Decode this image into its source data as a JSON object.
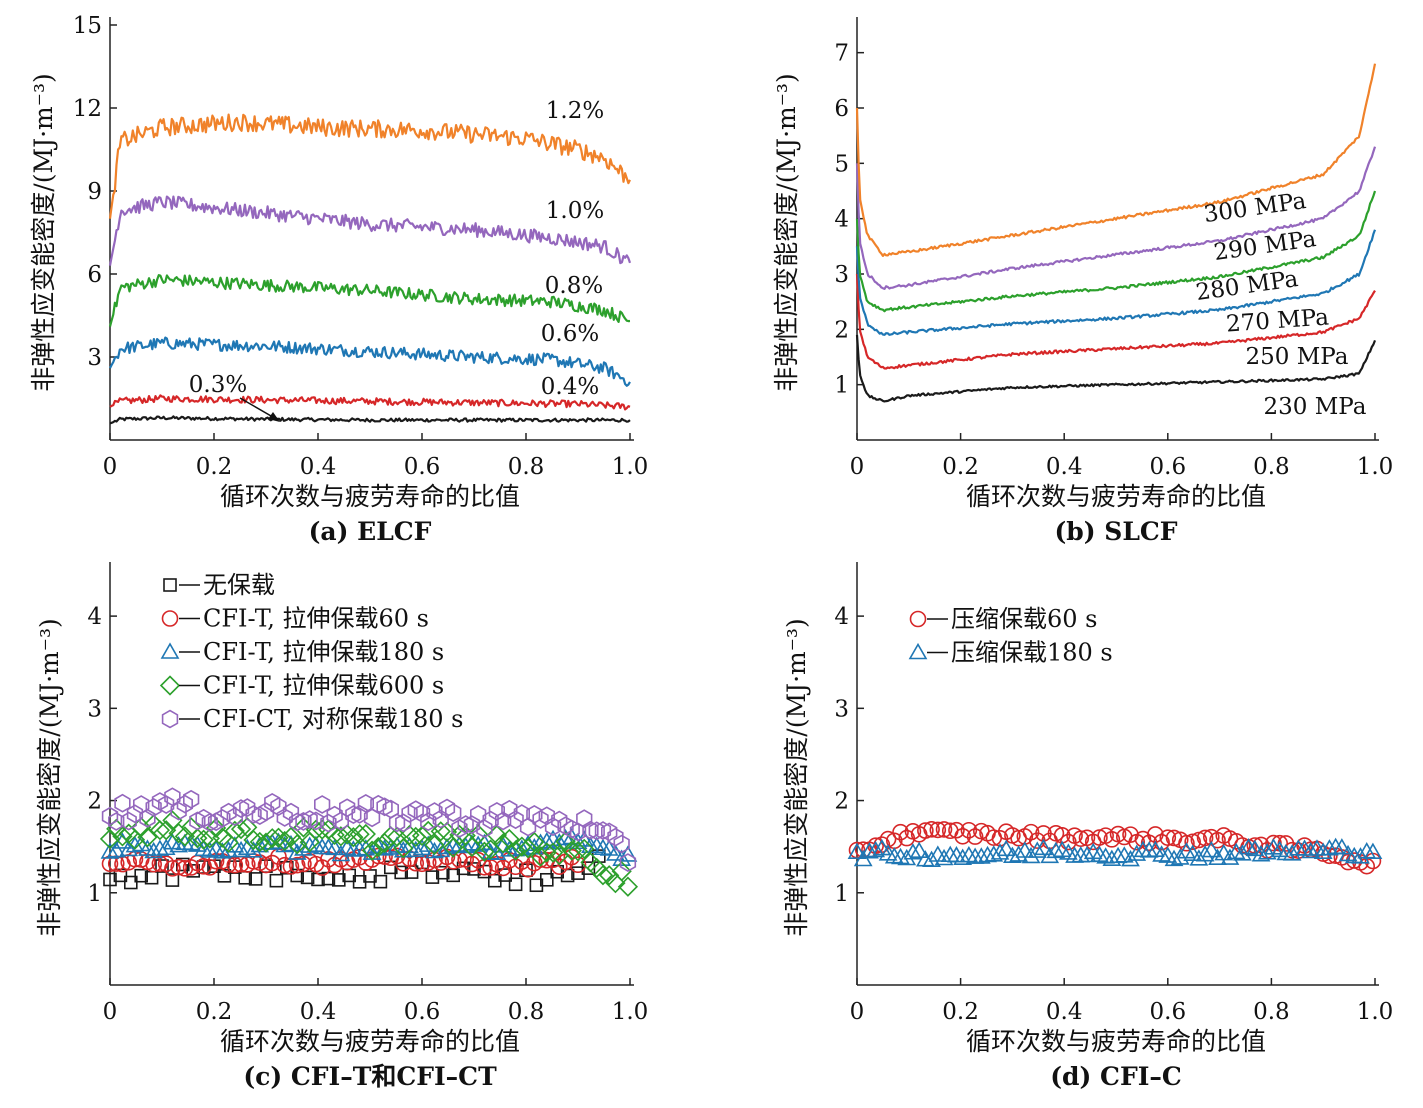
{
  "colors": {
    "black": "#1a1a1a",
    "red": "#d62728",
    "blue": "#1f77b4",
    "green": "#2ca02c",
    "purple": "#9467bd",
    "orange": "#f0822a"
  },
  "chart_data": [
    {
      "type": "line",
      "caption": "(a) ELCF",
      "xlabel": "循环次数与疲劳寿命的比值",
      "ylabel": "非弹性应变能密度/(MJ·m⁻³)",
      "xlim": [
        0,
        1.0
      ],
      "ylim": [
        0,
        15
      ],
      "xticks": [
        "0",
        "0.2",
        "0.4",
        "0.6",
        "0.8",
        "1.0"
      ],
      "yticks": [
        "3",
        "6",
        "9",
        "12",
        "15"
      ],
      "series": [
        {
          "name": "0.3%",
          "color": "black",
          "x": [
            0,
            0.02,
            0.1,
            0.3,
            0.5,
            0.7,
            0.9,
            1.0
          ],
          "y": [
            0.6,
            0.75,
            0.8,
            0.75,
            0.72,
            0.72,
            0.72,
            0.72
          ]
        },
        {
          "name": "0.4%",
          "color": "red",
          "x": [
            0,
            0.02,
            0.1,
            0.3,
            0.5,
            0.7,
            0.9,
            1.0
          ],
          "y": [
            1.2,
            1.4,
            1.5,
            1.45,
            1.4,
            1.35,
            1.3,
            1.2
          ]
        },
        {
          "name": "0.6%",
          "color": "blue",
          "x": [
            0,
            0.02,
            0.1,
            0.3,
            0.5,
            0.7,
            0.85,
            0.95,
            1.0
          ],
          "y": [
            2.6,
            3.3,
            3.5,
            3.4,
            3.2,
            3.0,
            2.9,
            2.6,
            2.1
          ]
        },
        {
          "name": "0.8%",
          "color": "green",
          "x": [
            0,
            0.02,
            0.1,
            0.3,
            0.5,
            0.7,
            0.85,
            0.95,
            1.0
          ],
          "y": [
            4.1,
            5.5,
            5.8,
            5.6,
            5.4,
            5.1,
            5.0,
            4.7,
            4.3
          ]
        },
        {
          "name": "1.0%",
          "color": "purple",
          "x": [
            0,
            0.02,
            0.1,
            0.3,
            0.5,
            0.7,
            0.85,
            0.95,
            1.0
          ],
          "y": [
            6.3,
            8.3,
            8.6,
            8.2,
            7.8,
            7.6,
            7.3,
            7.0,
            6.4
          ]
        },
        {
          "name": "1.2%",
          "color": "orange",
          "x": [
            0,
            0.02,
            0.1,
            0.25,
            0.4,
            0.6,
            0.8,
            0.9,
            0.95,
            1.0
          ],
          "y": [
            8.0,
            10.8,
            11.3,
            11.5,
            11.3,
            11.2,
            10.9,
            10.5,
            10.2,
            9.4
          ]
        }
      ]
    },
    {
      "type": "line",
      "caption": "(b) SLCF",
      "xlabel": "循环次数与疲劳寿命的比值",
      "ylabel": "非弹性应变能密度/(MJ·m⁻³)",
      "xlim": [
        0,
        1.0
      ],
      "ylim": [
        0,
        7.5
      ],
      "xticks": [
        "0",
        "0.2",
        "0.4",
        "0.6",
        "0.8",
        "1.0"
      ],
      "yticks": [
        "1",
        "2",
        "3",
        "4",
        "5",
        "6",
        "7"
      ],
      "series": [
        {
          "name": "230 MPa",
          "color": "black",
          "x": [
            0,
            0.005,
            0.02,
            0.05,
            0.1,
            0.3,
            0.5,
            0.7,
            0.9,
            0.97,
            1.0
          ],
          "y": [
            1.9,
            1.2,
            0.8,
            0.7,
            0.8,
            0.95,
            1.0,
            1.05,
            1.1,
            1.2,
            1.8
          ]
        },
        {
          "name": "250 MPa",
          "color": "red",
          "x": [
            0,
            0.005,
            0.02,
            0.05,
            0.1,
            0.3,
            0.5,
            0.7,
            0.9,
            0.97,
            1.0
          ],
          "y": [
            3.0,
            2.0,
            1.5,
            1.3,
            1.35,
            1.55,
            1.65,
            1.75,
            1.95,
            2.2,
            2.7
          ]
        },
        {
          "name": "270 MPa",
          "color": "blue",
          "x": [
            0,
            0.005,
            0.02,
            0.05,
            0.1,
            0.3,
            0.5,
            0.7,
            0.9,
            0.97,
            1.0
          ],
          "y": [
            3.5,
            2.6,
            2.1,
            1.9,
            1.95,
            2.1,
            2.2,
            2.35,
            2.65,
            3.0,
            3.8
          ]
        },
        {
          "name": "280 MPa",
          "color": "green",
          "x": [
            0,
            0.005,
            0.02,
            0.05,
            0.1,
            0.3,
            0.5,
            0.7,
            0.9,
            0.97,
            1.0
          ],
          "y": [
            4.0,
            3.0,
            2.5,
            2.35,
            2.4,
            2.6,
            2.75,
            2.95,
            3.3,
            3.7,
            4.5
          ]
        },
        {
          "name": "290 MPa",
          "color": "purple",
          "x": [
            0,
            0.005,
            0.02,
            0.05,
            0.1,
            0.3,
            0.5,
            0.7,
            0.9,
            0.97,
            1.0
          ],
          "y": [
            5.0,
            3.6,
            3.0,
            2.75,
            2.8,
            3.1,
            3.35,
            3.6,
            4.0,
            4.5,
            5.3
          ]
        },
        {
          "name": "300 MPa",
          "color": "orange",
          "x": [
            0,
            0.005,
            0.02,
            0.05,
            0.1,
            0.3,
            0.5,
            0.7,
            0.9,
            0.97,
            1.0
          ],
          "y": [
            6.0,
            4.4,
            3.7,
            3.35,
            3.4,
            3.7,
            4.0,
            4.3,
            4.8,
            5.5,
            6.8
          ]
        }
      ]
    },
    {
      "type": "scatter",
      "caption": "(c) CFI–T和CFI–CT",
      "xlabel": "循环次数与疲劳寿命的比值",
      "ylabel": "非弹性应变能密度/(MJ·m⁻³)",
      "xlim": [
        0,
        1.0
      ],
      "ylim": [
        0,
        4.5
      ],
      "xticks": [
        "0",
        "0.2",
        "0.4",
        "0.6",
        "0.8",
        "1.0"
      ],
      "yticks": [
        "1",
        "2",
        "3",
        "4"
      ],
      "legend_position": "top-left",
      "series": [
        {
          "name": "无保载",
          "marker": "square",
          "color": "black",
          "x": [
            0,
            0.1,
            0.2,
            0.3,
            0.4,
            0.5,
            0.6,
            0.7,
            0.8,
            0.9,
            0.95
          ],
          "y": [
            1.2,
            1.22,
            1.25,
            1.2,
            1.22,
            1.2,
            1.25,
            1.25,
            1.15,
            1.18,
            1.35
          ]
        },
        {
          "name": "CFI-T, 拉伸保载60 s",
          "marker": "circle",
          "color": "red",
          "x": [
            0,
            0.1,
            0.2,
            0.3,
            0.4,
            0.5,
            0.6,
            0.7,
            0.8,
            0.9
          ],
          "y": [
            1.35,
            1.3,
            1.32,
            1.35,
            1.32,
            1.35,
            1.35,
            1.33,
            1.3,
            1.35
          ]
        },
        {
          "name": "CFI-T, 拉伸保载180 s",
          "marker": "triangle",
          "color": "blue",
          "x": [
            0,
            0.1,
            0.2,
            0.3,
            0.4,
            0.5,
            0.6,
            0.7,
            0.8,
            0.9,
            1.0
          ],
          "y": [
            1.5,
            1.48,
            1.5,
            1.5,
            1.48,
            1.45,
            1.5,
            1.48,
            1.5,
            1.55,
            1.4
          ]
        },
        {
          "name": "CFI-T, 拉伸保载600 s",
          "marker": "diamond",
          "color": "green",
          "x": [
            0,
            0.1,
            0.2,
            0.3,
            0.4,
            0.5,
            0.6,
            0.7,
            0.8,
            0.9,
            1.0
          ],
          "y": [
            1.65,
            1.7,
            1.65,
            1.6,
            1.62,
            1.55,
            1.6,
            1.55,
            1.5,
            1.45,
            1.1
          ]
        },
        {
          "name": "CFI-CT, 对称保载180 s",
          "marker": "hexagon",
          "color": "purple",
          "x": [
            0,
            0.1,
            0.2,
            0.3,
            0.4,
            0.5,
            0.6,
            0.7,
            0.8,
            0.9,
            1.0
          ],
          "y": [
            1.85,
            1.95,
            1.85,
            1.9,
            1.85,
            1.85,
            1.85,
            1.8,
            1.8,
            1.75,
            1.4
          ]
        }
      ]
    },
    {
      "type": "scatter",
      "caption": "(d) CFI–C",
      "xlabel": "循环次数与疲劳寿命的比值",
      "ylabel": "非弹性应变能密度/(MJ·m⁻³)",
      "xlim": [
        0,
        1.0
      ],
      "ylim": [
        0,
        4.5
      ],
      "xticks": [
        "0",
        "0.2",
        "0.4",
        "0.6",
        "0.8",
        "1.0"
      ],
      "yticks": [
        "1",
        "2",
        "3",
        "4"
      ],
      "legend_position": "top-left",
      "series": [
        {
          "name": "压缩保载60 s",
          "marker": "circle",
          "color": "red",
          "x": [
            0,
            0.1,
            0.2,
            0.3,
            0.4,
            0.5,
            0.6,
            0.7,
            0.8,
            0.9,
            1.0
          ],
          "y": [
            1.45,
            1.65,
            1.65,
            1.62,
            1.6,
            1.6,
            1.58,
            1.58,
            1.5,
            1.45,
            1.3
          ]
        },
        {
          "name": "压缩保载180 s",
          "marker": "triangle",
          "color": "blue",
          "x": [
            0,
            0.1,
            0.2,
            0.3,
            0.4,
            0.5,
            0.6,
            0.7,
            0.8,
            0.9,
            1.0
          ],
          "y": [
            1.42,
            1.42,
            1.4,
            1.42,
            1.45,
            1.42,
            1.42,
            1.42,
            1.45,
            1.45,
            1.45
          ]
        }
      ]
    }
  ]
}
